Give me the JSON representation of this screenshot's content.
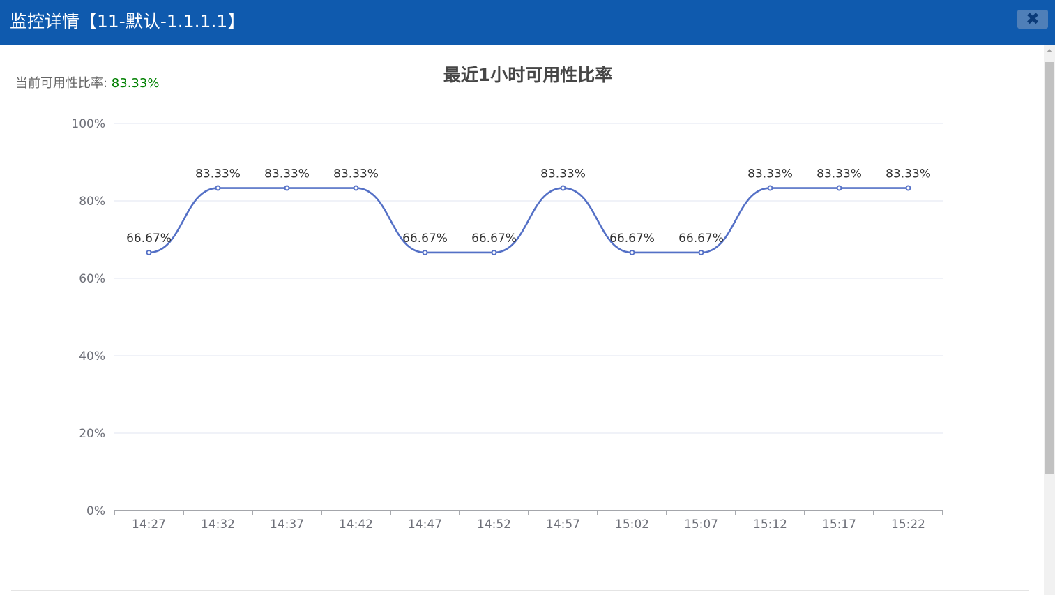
{
  "window": {
    "title": "监控详情【11-默认-1.1.1.1】",
    "close_glyph": "✖",
    "close_icon": "close-icon"
  },
  "summary": {
    "label": "当前可用性比率: ",
    "value": "83.33%"
  },
  "colors": {
    "titlebar": "#0f5aae",
    "series": "#5470c6",
    "value_text": "#008000",
    "grid": "#e0e6f1"
  },
  "chart_data": {
    "type": "line",
    "smooth": true,
    "title": "最近1小时可用性比率",
    "xlabel": "",
    "ylabel": "",
    "categories": [
      "14:27",
      "14:32",
      "14:37",
      "14:42",
      "14:47",
      "14:52",
      "14:57",
      "15:02",
      "15:07",
      "15:12",
      "15:17",
      "15:22"
    ],
    "series": [
      {
        "values": [
          66.67,
          83.33,
          83.33,
          83.33,
          66.67,
          66.67,
          83.33,
          66.67,
          66.67,
          83.33,
          83.33,
          83.33
        ],
        "labels": [
          "66.67%",
          "83.33%",
          "83.33%",
          "83.33%",
          "66.67%",
          "66.67%",
          "83.33%",
          "66.67%",
          "66.67%",
          "83.33%",
          "83.33%",
          "83.33%"
        ]
      }
    ],
    "ylim": [
      0,
      100
    ],
    "yticks": [
      0,
      20,
      40,
      60,
      80,
      100
    ],
    "ytick_labels": [
      "0%",
      "20%",
      "40%",
      "60%",
      "80%",
      "100%"
    ],
    "grid": true,
    "legend": "none"
  }
}
